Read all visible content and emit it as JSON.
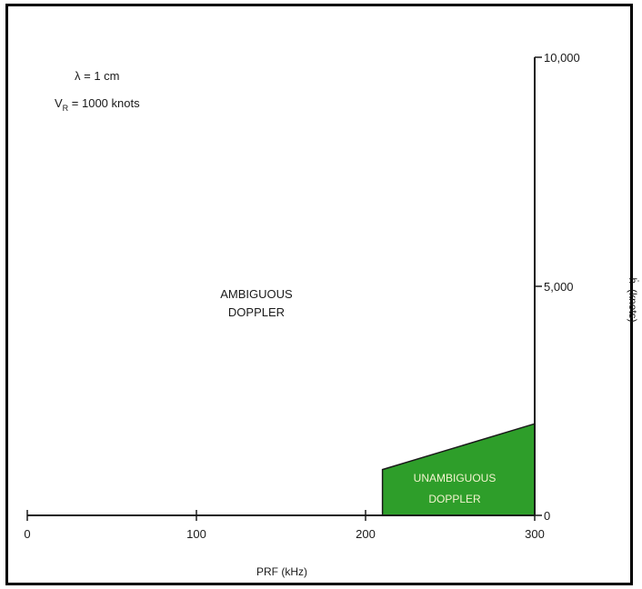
{
  "chart_data": {
    "type": "area",
    "annotations": {
      "param_line1": "λ = 1 cm",
      "param_line2_main": "V",
      "param_line2_sub": "R",
      "param_line2_rest": " = 1000 knots",
      "region_ambiguous_line1": "AMBIGUOUS",
      "region_ambiguous_line2": "DOPPLER",
      "region_unambiguous_line1": "UNAMBIGUOUS",
      "region_unambiguous_line2": "DOPPLER"
    },
    "xlabel": "PRF (kHz)",
    "ylabel_symbol": "ḣ",
    "ylabel_unit": "(knots)",
    "xlim": [
      0,
      300
    ],
    "ylim": [
      0,
      10000
    ],
    "x_ticks": [
      0,
      100,
      200,
      300
    ],
    "x_tick_labels": [
      "0",
      "100",
      "200",
      "300"
    ],
    "y_ticks": [
      0,
      5000,
      10000
    ],
    "y_tick_labels": [
      "0",
      "5,000",
      "10,000"
    ],
    "grid": false,
    "series": [
      {
        "region": "unambiguous",
        "fill": "#2e9e2a",
        "polygon": [
          [
            210,
            0
          ],
          [
            210,
            1000
          ],
          [
            300,
            2000
          ],
          [
            300,
            0
          ]
        ]
      }
    ]
  }
}
